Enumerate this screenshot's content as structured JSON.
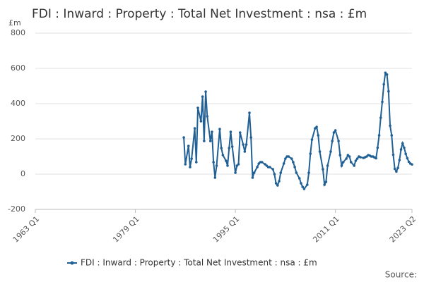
{
  "chart_data": {
    "type": "line",
    "title": "FDI : Inward : Property : Total Net Investment : nsa : £m",
    "y_unit": "£m",
    "source": "Source:",
    "x": [
      1986.75,
      1987,
      1987.5,
      1987.75,
      1988,
      1988.5,
      1988.75,
      1989,
      1989.5,
      1989.75,
      1990,
      1990.25,
      1990.5,
      1991,
      1991.25,
      1991.5,
      1991.75,
      1992,
      1992.5,
      1992.75,
      1993,
      1993.5,
      1993.75,
      1994,
      1994.25,
      1994.5,
      1995,
      1995.25,
      1995.5,
      1995.75,
      1996.25,
      1996.5,
      1996.75,
      1997.25,
      1997.5,
      1997.75,
      1998,
      1998.5,
      1998.75,
      1999,
      1999.25,
      1999.75,
      2000,
      2000.25,
      2000.5,
      2001,
      2001.25,
      2001.5,
      2001.75,
      2002,
      2002.25,
      2002.75,
      2003,
      2003.25,
      2003.5,
      2004,
      2004.25,
      2004.5,
      2004.75,
      2005.25,
      2005.5,
      2005.75,
      2006,
      2006.5,
      2006.75,
      2007,
      2007.25,
      2007.75,
      2008,
      2008.25,
      2008.5,
      2009,
      2009.25,
      2009.5,
      2009.75,
      2010.25,
      2010.5,
      2010.75,
      2011,
      2011.5,
      2011.75,
      2012,
      2012.25,
      2012.75,
      2013,
      2013.25,
      2013.5,
      2014,
      2014.25,
      2014.5,
      2014.75,
      2015,
      2015.5,
      2015.75,
      2016,
      2016.25,
      2016.5,
      2016.75,
      2017,
      2017.25,
      2017.5,
      2017.75,
      2018,
      2018.25,
      2018.5,
      2018.75,
      2019,
      2019.25,
      2019.5,
      2019.75,
      2020,
      2020.25,
      2020.5,
      2020.75,
      2021,
      2021.25,
      2021.5,
      2021.75,
      2022,
      2022.25,
      2022.5,
      2022.75,
      2023,
      2023.25
    ],
    "series": [
      {
        "name": "FDI : Inward : Property : Total Net Investment : nsa : £m",
        "color": "#206095",
        "values": [
          208,
          56,
          160,
          40,
          88,
          260,
          68,
          376,
          300,
          440,
          188,
          468,
          328,
          188,
          240,
          68,
          -20,
          48,
          256,
          148,
          108,
          76,
          48,
          148,
          240,
          156,
          8,
          48,
          56,
          236,
          168,
          128,
          168,
          348,
          208,
          -20,
          8,
          40,
          60,
          68,
          68,
          56,
          48,
          40,
          40,
          28,
          0,
          -52,
          -64,
          -40,
          8,
          60,
          88,
          100,
          100,
          88,
          68,
          40,
          8,
          -24,
          -52,
          -72,
          -84,
          -60,
          8,
          116,
          196,
          260,
          268,
          220,
          128,
          28,
          -60,
          -44,
          48,
          128,
          188,
          236,
          248,
          188,
          108,
          48,
          68,
          88,
          108,
          100,
          68,
          48,
          76,
          88,
          100,
          96,
          92,
          96,
          100,
          108,
          105,
          100,
          100,
          95,
          90,
          150,
          220,
          320,
          410,
          510,
          575,
          565,
          470,
          275,
          220,
          110,
          30,
          15,
          35,
          80,
          140,
          175,
          150,
          115,
          90,
          70,
          60,
          55
        ]
      }
    ],
    "xlim": [
      1963,
      2023.25
    ],
    "xticks": [
      {
        "value": 1963,
        "label": "1963 Q1"
      },
      {
        "value": 1979,
        "label": "1979 Q1"
      },
      {
        "value": 1995,
        "label": "1995 Q1"
      },
      {
        "value": 2011,
        "label": "2011 Q1"
      },
      {
        "value": 2023.25,
        "label": "2023 Q2"
      }
    ],
    "ylim": [
      -200,
      800
    ],
    "yticks": [
      -200,
      0,
      200,
      400,
      600,
      800
    ],
    "grid": true
  }
}
